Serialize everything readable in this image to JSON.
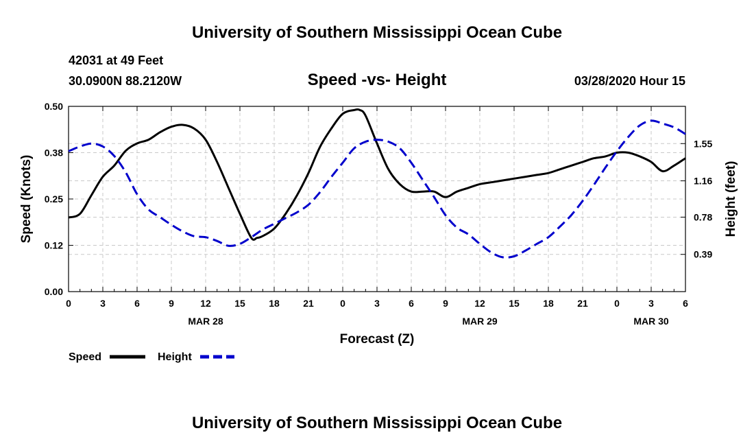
{
  "page": {
    "header_title": "University of Southern Mississippi Ocean Cube",
    "footer_title": "University of Southern Mississippi Ocean Cube",
    "station_line": "42031 at 49 Feet",
    "coords_line": "30.0900N 88.2120W",
    "datetime_line": "03/28/2020 Hour 15"
  },
  "colors": {
    "speed": "#000000",
    "height": "#0000cc",
    "grid": "#c8c8c8"
  },
  "chart_data": {
    "type": "line",
    "title": "Speed -vs- Height",
    "xlabel": "Forecast (Z)",
    "ylabel": "Speed (Knots)",
    "y2label": "Height (feet)",
    "xlim": [
      0,
      54
    ],
    "ylim": [
      0,
      0.5
    ],
    "y2lim": [
      0,
      1.94
    ],
    "x_ticks": [
      0,
      3,
      6,
      9,
      12,
      15,
      18,
      21,
      24,
      27,
      30,
      33,
      36,
      39,
      42,
      45,
      48,
      51,
      54
    ],
    "x_tick_labels": [
      "0",
      "3",
      "6",
      "9",
      "12",
      "15",
      "18",
      "21",
      "0",
      "3",
      "6",
      "9",
      "12",
      "15",
      "18",
      "21",
      "0",
      "3",
      "6"
    ],
    "date_labels": [
      {
        "x": 12,
        "label": "MAR 28"
      },
      {
        "x": 36,
        "label": "MAR 29"
      },
      {
        "x": 51,
        "label": "MAR 30"
      }
    ],
    "y_ticks": [
      0,
      0.125,
      0.25,
      0.375,
      0.5
    ],
    "y_tick_labels": [
      "0.00",
      "0.12",
      "0.25",
      "0.38",
      "0.50"
    ],
    "y2_ticks": [
      0.39,
      0.78,
      1.16,
      1.55
    ],
    "y2_tick_labels": [
      "0.39",
      "0.78",
      "1.16",
      "1.55"
    ],
    "legend": [
      {
        "name": "Speed",
        "style": "solid"
      },
      {
        "name": "Height",
        "style": "dashed"
      }
    ],
    "series": [
      {
        "name": "Speed",
        "axis": "left",
        "style": "solid",
        "x": [
          0,
          1,
          2,
          3,
          4,
          5,
          6,
          7,
          8,
          9,
          10,
          11,
          12,
          13,
          14,
          15,
          16,
          16.5,
          17,
          18,
          19,
          20,
          21,
          22,
          23,
          24,
          25,
          25.5,
          26,
          27,
          28,
          29,
          30,
          31,
          32,
          33,
          34,
          35,
          36,
          37,
          38,
          39,
          40,
          41,
          42,
          43,
          44,
          45,
          46,
          47,
          48,
          49,
          50,
          51,
          52,
          53,
          54
        ],
        "values": [
          0.2,
          0.21,
          0.26,
          0.31,
          0.34,
          0.38,
          0.4,
          0.41,
          0.43,
          0.445,
          0.45,
          0.44,
          0.41,
          0.35,
          0.28,
          0.21,
          0.145,
          0.145,
          0.15,
          0.17,
          0.21,
          0.26,
          0.32,
          0.39,
          0.44,
          0.48,
          0.49,
          0.49,
          0.475,
          0.4,
          0.33,
          0.29,
          0.27,
          0.27,
          0.27,
          0.255,
          0.27,
          0.28,
          0.29,
          0.295,
          0.3,
          0.305,
          0.31,
          0.315,
          0.32,
          0.33,
          0.34,
          0.35,
          0.36,
          0.365,
          0.375,
          0.375,
          0.365,
          0.35,
          0.325,
          0.34,
          0.36
        ]
      },
      {
        "name": "Height",
        "axis": "right",
        "style": "dashed",
        "x": [
          0,
          1,
          2,
          3,
          4,
          5,
          6,
          7,
          8,
          9,
          10,
          11,
          12,
          13,
          14,
          15,
          16,
          17,
          18,
          19,
          20,
          21,
          22,
          23,
          24,
          25,
          26,
          27,
          28,
          29,
          30,
          31,
          32,
          33,
          34,
          35,
          36,
          37,
          38,
          39,
          40,
          41,
          42,
          43,
          44,
          45,
          46,
          47,
          48,
          49,
          50,
          51,
          52,
          53,
          54
        ],
        "values": [
          1.47,
          1.52,
          1.55,
          1.52,
          1.42,
          1.25,
          1.02,
          0.86,
          0.78,
          0.7,
          0.63,
          0.58,
          0.57,
          0.53,
          0.48,
          0.5,
          0.57,
          0.65,
          0.71,
          0.77,
          0.83,
          0.91,
          1.04,
          1.2,
          1.35,
          1.5,
          1.57,
          1.59,
          1.57,
          1.5,
          1.35,
          1.17,
          0.99,
          0.8,
          0.67,
          0.6,
          0.5,
          0.41,
          0.36,
          0.37,
          0.43,
          0.5,
          0.57,
          0.68,
          0.8,
          0.95,
          1.12,
          1.3,
          1.47,
          1.62,
          1.74,
          1.79,
          1.76,
          1.72,
          1.65
        ]
      }
    ]
  }
}
